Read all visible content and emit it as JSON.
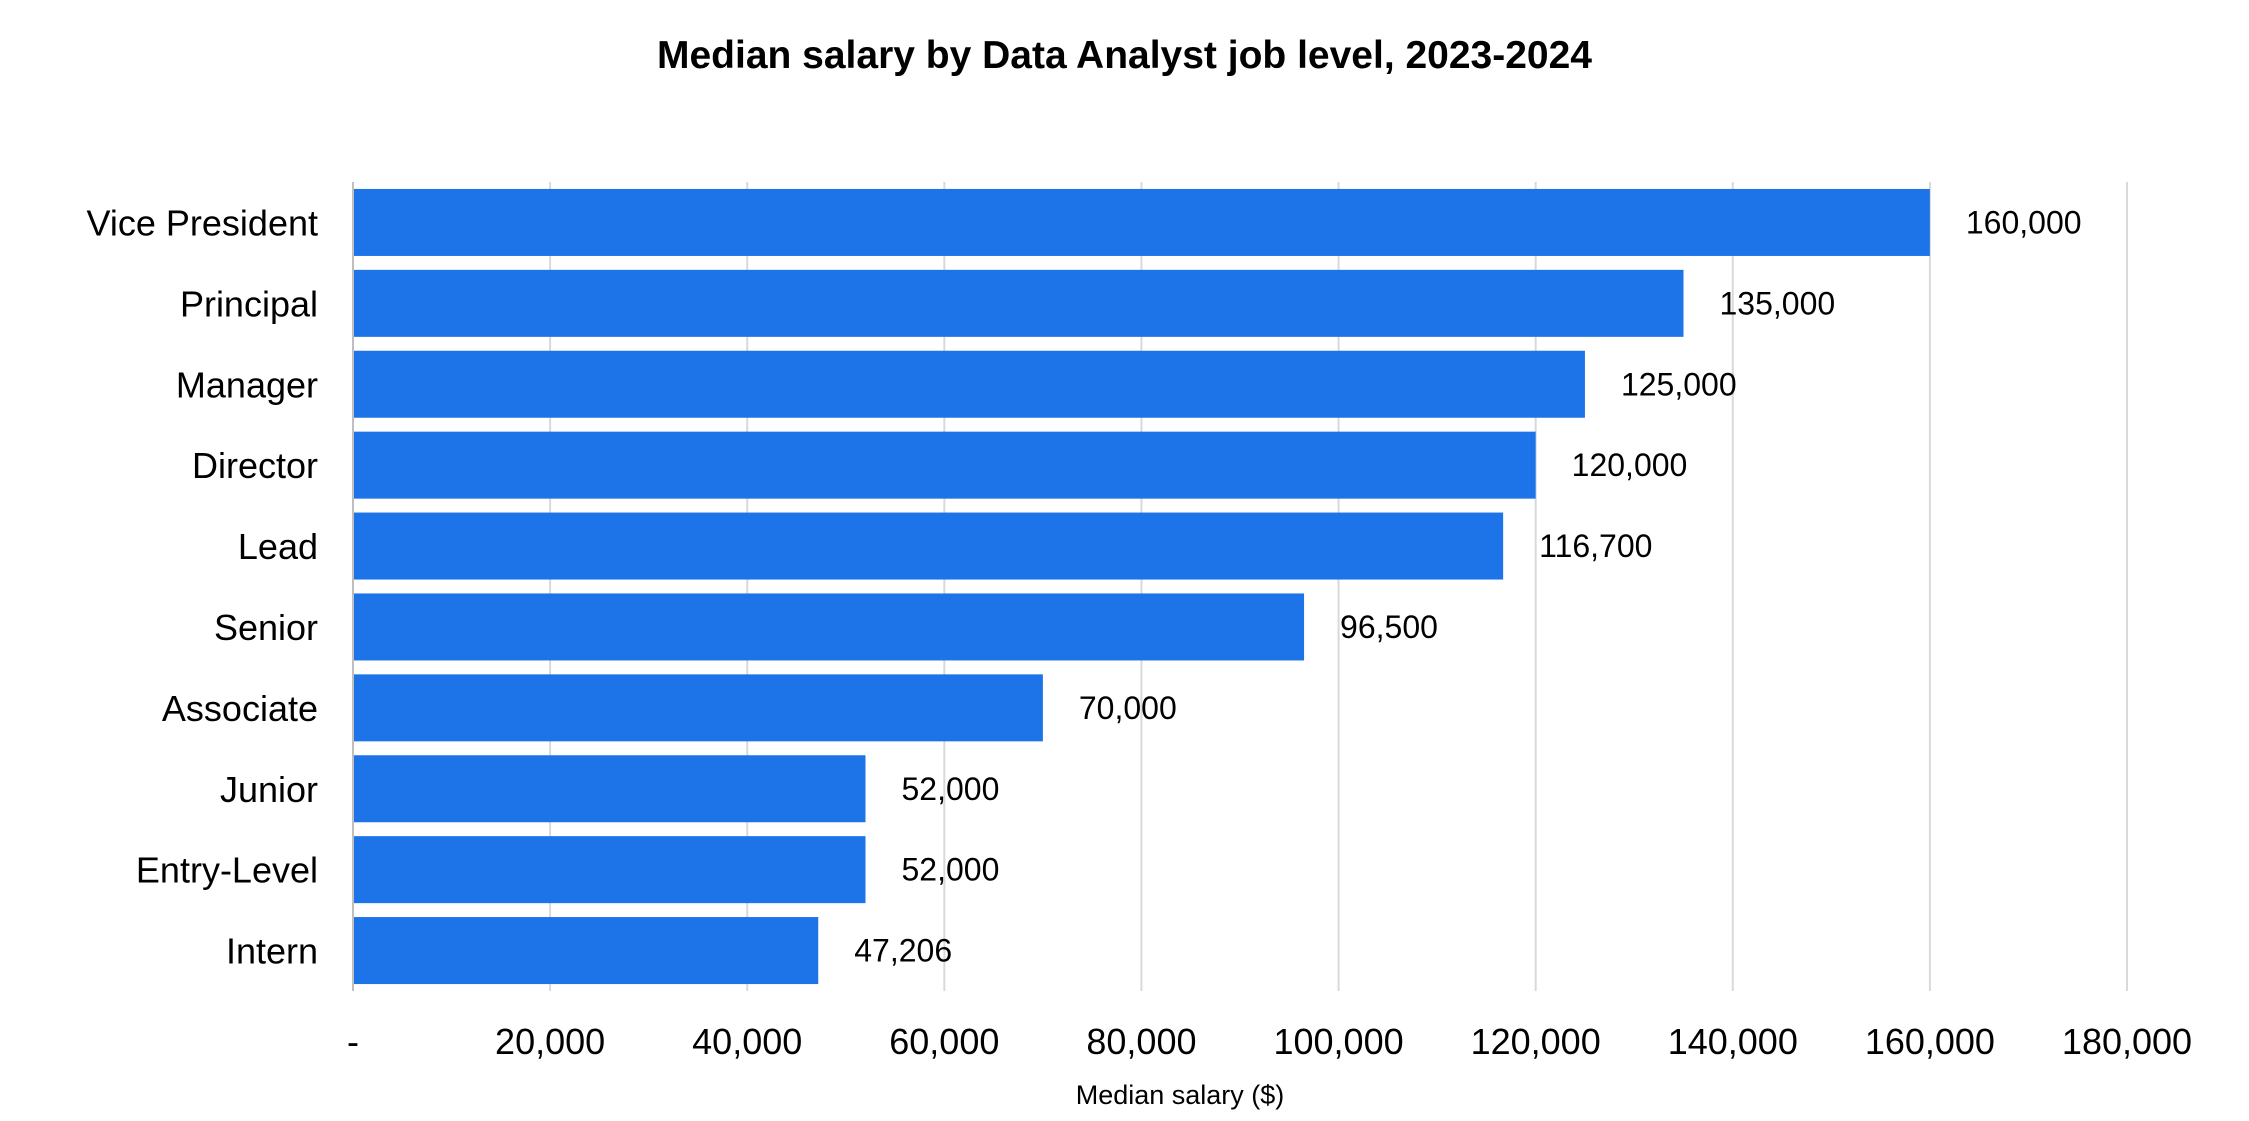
{
  "chart_data": {
    "type": "bar",
    "orientation": "horizontal",
    "title": "Median salary by Data Analyst job level, 2023-2024",
    "xlabel": "Median salary ($)",
    "ylabel": "",
    "categories": [
      "Vice President",
      "Principal",
      "Manager",
      "Director",
      "Lead",
      "Senior",
      "Associate",
      "Junior",
      "Entry-Level",
      "Intern"
    ],
    "values": [
      160000,
      135000,
      125000,
      120000,
      116700,
      96500,
      70000,
      52000,
      52000,
      47206
    ],
    "value_labels": [
      "160,000",
      "135,000",
      "125,000",
      "120,000",
      "116,700",
      "96,500",
      "70,000",
      "52,000",
      "52,000",
      "47,206"
    ],
    "xlim": [
      0,
      180000
    ],
    "x_ticks": [
      0,
      20000,
      40000,
      60000,
      80000,
      100000,
      120000,
      140000,
      160000,
      180000
    ],
    "x_tick_labels": [
      "-",
      "20,000",
      "40,000",
      "60,000",
      "80,000",
      "100,000",
      "120,000",
      "140,000",
      "160,000",
      "180,000"
    ],
    "grid": "vertical",
    "legend": "none",
    "colors": {
      "bar": "#1d74e8",
      "grid": "#d9d9d9",
      "text": "#000000"
    }
  }
}
